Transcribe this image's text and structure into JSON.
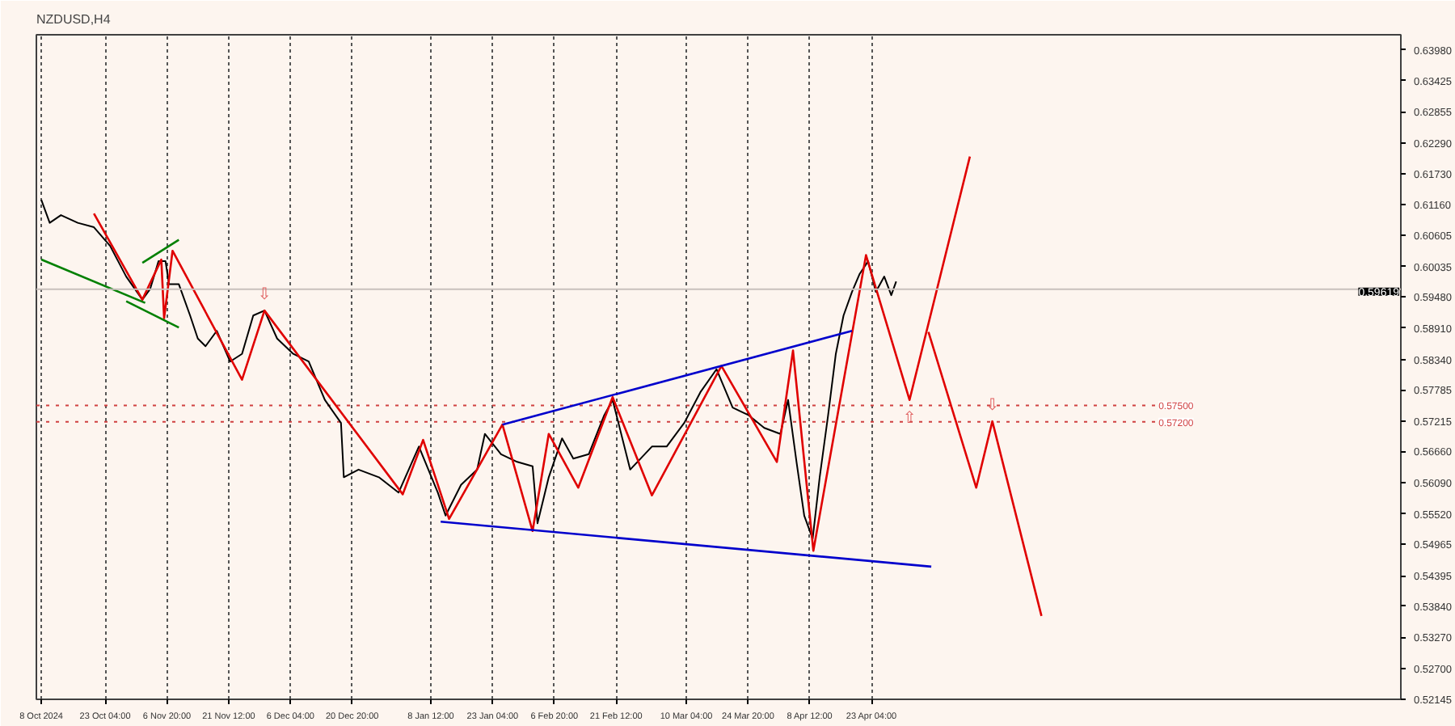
{
  "chart_data": {
    "type": "line",
    "title": "NZDUSD,H4",
    "xlim": [
      "2024-10-06T20:00",
      "2025-08-26T20:00"
    ],
    "ylim": [
      0.5214,
      0.6426
    ],
    "xticks": [
      {
        "value": "2024-10-08T00:00",
        "label": "8 Oct 2024"
      },
      {
        "value": "2024-10-23T04:00",
        "label": "23 Oct 04:00"
      },
      {
        "value": "2024-11-06T20:00",
        "label": "6 Nov 20:00"
      },
      {
        "value": "2024-11-21T12:00",
        "label": "21 Nov 12:00"
      },
      {
        "value": "2024-12-06T04:00",
        "label": "6 Dec 04:00"
      },
      {
        "value": "2024-12-20T20:00",
        "label": "20 Dec 20:00"
      },
      {
        "value": "2025-01-08T12:00",
        "label": "8 Jan 12:00"
      },
      {
        "value": "2025-01-23T04:00",
        "label": "23 Jan 04:00"
      },
      {
        "value": "2025-02-06T20:00",
        "label": "6 Feb 20:00"
      },
      {
        "value": "2025-02-21T12:00",
        "label": "21 Feb 12:00"
      },
      {
        "value": "2025-03-10T04:00",
        "label": "10 Mar 04:00"
      },
      {
        "value": "2025-03-24T20:00",
        "label": "24 Mar 20:00"
      },
      {
        "value": "2025-04-08T12:00",
        "label": "8 Apr 12:00"
      },
      {
        "value": "2025-04-23T04:00",
        "label": "23 Apr 04:00"
      }
    ],
    "yticks": [
      {
        "value": 0.6398,
        "label": "0.63980"
      },
      {
        "value": 0.63425,
        "label": "0.63425"
      },
      {
        "value": 0.62855,
        "label": "0.62855"
      },
      {
        "value": 0.6229,
        "label": "0.62290"
      },
      {
        "value": 0.6173,
        "label": "0.61730"
      },
      {
        "value": 0.6116,
        "label": "0.61160"
      },
      {
        "value": 0.60605,
        "label": "0.60605"
      },
      {
        "value": 0.60035,
        "label": "0.60035"
      },
      {
        "value": 0.5948,
        "label": "0.59480"
      },
      {
        "value": 0.5891,
        "label": "0.58910"
      },
      {
        "value": 0.5834,
        "label": "0.58340"
      },
      {
        "value": 0.57785,
        "label": "0.57785"
      },
      {
        "value": 0.57215,
        "label": "0.57215"
      },
      {
        "value": 0.5666,
        "label": "0.56660"
      },
      {
        "value": 0.5609,
        "label": "0.56090"
      },
      {
        "value": 0.5552,
        "label": "0.55520"
      },
      {
        "value": 0.54965,
        "label": "0.54965"
      },
      {
        "value": 0.54395,
        "label": "0.54395"
      },
      {
        "value": 0.5384,
        "label": "0.53840"
      },
      {
        "value": 0.5327,
        "label": "0.53270"
      },
      {
        "value": 0.527,
        "label": "0.52700"
      },
      {
        "value": 0.52145,
        "label": "0.52145"
      }
    ],
    "grid": "x",
    "line_style": "solid",
    "marker": "none",
    "series": [
      {
        "color": "#000000",
        "x": [
          "2024-10-08T00:00",
          "2024-10-10T00:00",
          "2024-10-12T16:00",
          "2024-10-16T16:00",
          "2024-10-20T12:00",
          "2024-10-24T08:00",
          "2024-10-28T04:00",
          "2024-11-01T00:00",
          "2024-11-02T20:00",
          "2024-11-04T20:00",
          "2024-11-06T12:00",
          "2024-11-07T08:00",
          "2024-11-09T16:00",
          "2024-11-12T08:00",
          "2024-11-14T04:00",
          "2024-11-16T00:00",
          "2024-11-18T16:00",
          "2024-11-21T20:00",
          "2024-11-24T16:00",
          "2024-11-27T08:00",
          "2024-11-30T00:00",
          "2024-12-03T00:00",
          "2024-12-06T20:00",
          "2024-12-10T12:00",
          "2024-12-14T08:00",
          "2024-12-18T04:00",
          "2024-12-18T20:00",
          "2024-12-22T08:00",
          "2024-12-27T04:00",
          "2024-12-31T20:00",
          "2025-01-05T16:00",
          "2025-01-10T04:00",
          "2025-01-12T00:00",
          "2025-01-15T16:00",
          "2025-01-19T12:00",
          "2025-01-21T08:00",
          "2025-01-25T04:00",
          "2025-01-29T00:00",
          "2025-02-01T16:00",
          "2025-02-02T20:00",
          "2025-02-05T12:00",
          "2025-02-08T16:00",
          "2025-02-11T08:00",
          "2025-02-15T00:00",
          "2025-02-18T16:00",
          "2025-02-20T16:00",
          "2025-02-24T20:00",
          "2025-03-02T00:00",
          "2025-03-05T12:00",
          "2025-03-09T16:00",
          "2025-03-13T12:00",
          "2025-03-17T08:00",
          "2025-03-21T04:00",
          "2025-03-25T00:00",
          "2025-03-28T16:00",
          "2025-04-01T12:00",
          "2025-04-03T08:00",
          "2025-04-05T08:00",
          "2025-04-07T04:00",
          "2025-04-09T04:00",
          "2025-04-10T20:00",
          "2025-04-12T20:00",
          "2025-04-14T16:00",
          "2025-04-16T12:00",
          "2025-04-18T12:00",
          "2025-04-20T08:00",
          "2025-04-22T08:00",
          "2025-04-24T04:00",
          "2025-04-26T04:00",
          "2025-04-27T20:00",
          "2025-04-29T00:00"
        ],
        "values": [
          0.6125,
          0.6083,
          0.6097,
          0.6083,
          0.6075,
          0.6041,
          0.5985,
          0.5943,
          0.5962,
          0.6013,
          0.6013,
          0.5971,
          0.5971,
          0.5914,
          0.5872,
          0.5858,
          0.5886,
          0.583,
          0.5844,
          0.5914,
          0.5923,
          0.5872,
          0.5844,
          0.583,
          0.576,
          0.5718,
          0.5619,
          0.5633,
          0.5619,
          0.5591,
          0.5675,
          0.5591,
          0.5549,
          0.5605,
          0.5633,
          0.5698,
          0.5661,
          0.5647,
          0.5639,
          0.5535,
          0.5619,
          0.569,
          0.5653,
          0.5661,
          0.5732,
          0.576,
          0.5633,
          0.5675,
          0.5675,
          0.5718,
          0.5774,
          0.5816,
          0.5746,
          0.5732,
          0.5709,
          0.5698,
          0.576,
          0.5647,
          0.5549,
          0.5507,
          0.5619,
          0.5732,
          0.5844,
          0.5914,
          0.5957,
          0.599,
          0.6013,
          0.5957,
          0.5985,
          0.5951,
          0.5976
        ]
      },
      {
        "color": "#e00000",
        "x": [
          "2024-10-20T12:00",
          "2024-11-01T00:00",
          "2024-11-05T12:00",
          "2024-11-06T04:00",
          "2024-11-08T04:00",
          "2024-11-24T16:00",
          "2024-11-30T00:00",
          "2025-01-01T20:00",
          "2025-01-06T16:00",
          "2025-01-12T20:00",
          "2025-01-25T12:00",
          "2025-02-01T16:00",
          "2025-02-05T12:00",
          "2025-02-12T12:00",
          "2025-02-20T16:00",
          "2025-03-02T00:00",
          "2025-03-18T12:00",
          "2025-03-31T16:00",
          "2025-04-04T12:00",
          "2025-04-09T08:00",
          "2025-04-21T20:00",
          "2025-05-02T04:00",
          "2025-05-16T12:00"
        ],
        "values": [
          0.61,
          0.5943,
          0.6016,
          0.5909,
          0.6032,
          0.5797,
          0.5923,
          0.5588,
          0.5687,
          0.5543,
          0.5715,
          0.5521,
          0.5698,
          0.56,
          0.5765,
          0.5586,
          0.5822,
          0.5647,
          0.585,
          0.5485,
          0.6024,
          0.576,
          0.6204
        ]
      },
      {
        "color": "#e00000",
        "x": [
          "2025-05-06T16:00",
          "2025-05-18T00:00",
          "2025-05-21T20:00",
          "2025-06-02T12:00"
        ],
        "values": [
          0.5884,
          0.56,
          0.5721,
          0.5366
        ]
      },
      {
        "color": "#0000cc",
        "x": [
          "2025-01-25T12:00",
          "2025-04-18T12:00"
        ],
        "values": [
          0.5715,
          0.5886
        ]
      },
      {
        "color": "#0000cc",
        "x": [
          "2025-01-10T20:00",
          "2025-05-07T08:00"
        ],
        "values": [
          0.5538,
          0.5456
        ]
      },
      {
        "color": "#008000",
        "x": [
          "2024-10-08T00:00",
          "2024-11-01T16:00"
        ],
        "values": [
          0.6016,
          0.5937
        ]
      },
      {
        "color": "#008000",
        "x": [
          "2024-10-28T04:00",
          "2024-11-09T16:00"
        ],
        "values": [
          0.594,
          0.5892
        ]
      },
      {
        "color": "#008000",
        "x": [
          "2024-11-01T00:00",
          "2024-11-09T16:00"
        ],
        "values": [
          0.601,
          0.6052
        ]
      }
    ],
    "ref_lines": [
      {
        "axis": "y",
        "value": 0.59619,
        "label": "0.59619",
        "color": "#c8c0bc",
        "line_style": "solid"
      },
      {
        "axis": "y",
        "value": 0.575,
        "label": "0.57500",
        "color": "#d04040",
        "line_style": "dotted"
      },
      {
        "axis": "y",
        "value": 0.572,
        "label": "0.57200",
        "color": "#d04040",
        "line_style": "dotted"
      }
    ],
    "annotations": [
      {
        "text": "⇩",
        "x": "2024-11-30T00:00",
        "y": 0.5923
      },
      {
        "text": "⇧",
        "x": "2025-05-02T04:00",
        "y": 0.576
      },
      {
        "text": "⇩",
        "x": "2025-05-21T20:00",
        "y": 0.5721
      }
    ]
  }
}
